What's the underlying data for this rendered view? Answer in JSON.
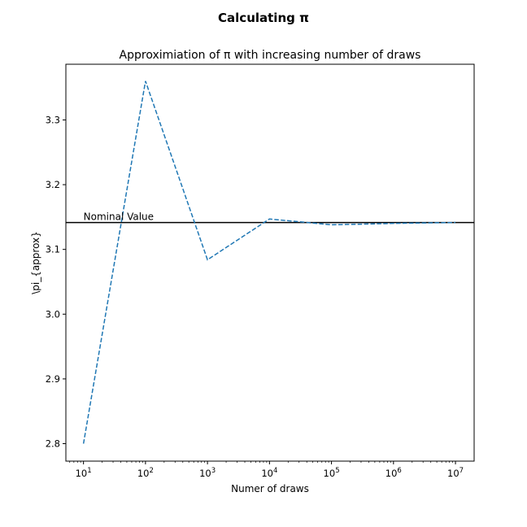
{
  "figure": {
    "suptitle": "Calculating π"
  },
  "chart_data": {
    "type": "line",
    "title": "Approximiation of π with increasing number of draws",
    "xlabel": "Numer of draws",
    "ylabel": "\\pi_{approx}",
    "xscale": "log",
    "xlim": [
      5.2,
      20000000
    ],
    "ylim": [
      2.773,
      3.386
    ],
    "x_ticks": [
      {
        "value": 10,
        "label": "10",
        "exp": "1"
      },
      {
        "value": 100,
        "label": "10",
        "exp": "2"
      },
      {
        "value": 1000,
        "label": "10",
        "exp": "3"
      },
      {
        "value": 10000,
        "label": "10",
        "exp": "4"
      },
      {
        "value": 100000,
        "label": "10",
        "exp": "5"
      },
      {
        "value": 1000000,
        "label": "10",
        "exp": "6"
      },
      {
        "value": 10000000,
        "label": "10",
        "exp": "7"
      }
    ],
    "y_ticks": [
      {
        "value": 2.8,
        "label": "2.8"
      },
      {
        "value": 2.9,
        "label": "2.9"
      },
      {
        "value": 3.0,
        "label": "3.0"
      },
      {
        "value": 3.1,
        "label": "3.1"
      },
      {
        "value": 3.2,
        "label": "3.2"
      },
      {
        "value": 3.3,
        "label": "3.3"
      }
    ],
    "series": [
      {
        "x": [
          10,
          100,
          1000,
          10000,
          100000,
          1000000,
          10000000
        ],
        "y": [
          2.8,
          3.36,
          3.084,
          3.147,
          3.138,
          3.1402,
          3.1416
        ],
        "color": "#1f77b4",
        "linestyle": "dashed"
      }
    ],
    "reference_line": {
      "y": 3.14159,
      "color": "#000000",
      "annotation": "Nominal Value",
      "annotation_x": 10
    },
    "grid": false
  }
}
